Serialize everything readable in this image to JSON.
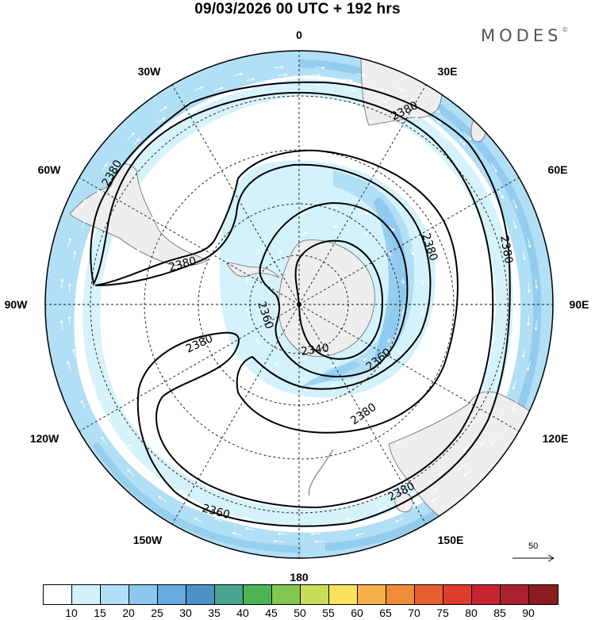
{
  "title": "09/03/2026  00 UTC  + 192 hrs",
  "brand": "MODES",
  "brand_mark": "©",
  "meridian_labels": {
    "m0": "0",
    "m30e": "30E",
    "m60e": "60E",
    "m90e": "90E",
    "m120e": "120E",
    "m150e": "150E",
    "m180": "180",
    "m150w": "150W",
    "m120w": "120W",
    "m90w": "90W",
    "m60w": "60W",
    "m30w": "30W"
  },
  "contour_labels": [
    "2380",
    "2380",
    "2380",
    "2380",
    "2380",
    "2380",
    "2380",
    "2360",
    "2360",
    "2360",
    "2340"
  ],
  "wind_reference": {
    "value": "50"
  },
  "legend": {
    "labels": [
      "10",
      "15",
      "20",
      "25",
      "30",
      "35",
      "40",
      "45",
      "50",
      "55",
      "60",
      "65",
      "70",
      "75",
      "80",
      "85",
      "90"
    ],
    "colors": [
      "#ffffff",
      "#d2f1fb",
      "#b1dff5",
      "#8cc7ec",
      "#68a9df",
      "#4d92c6",
      "#4aa590",
      "#4bb454",
      "#82c750",
      "#c8dc58",
      "#f9e25e",
      "#f6b049",
      "#ef8c3a",
      "#e8602f",
      "#df3b2e",
      "#c72432",
      "#a8212e",
      "#8a1b1f"
    ]
  }
}
